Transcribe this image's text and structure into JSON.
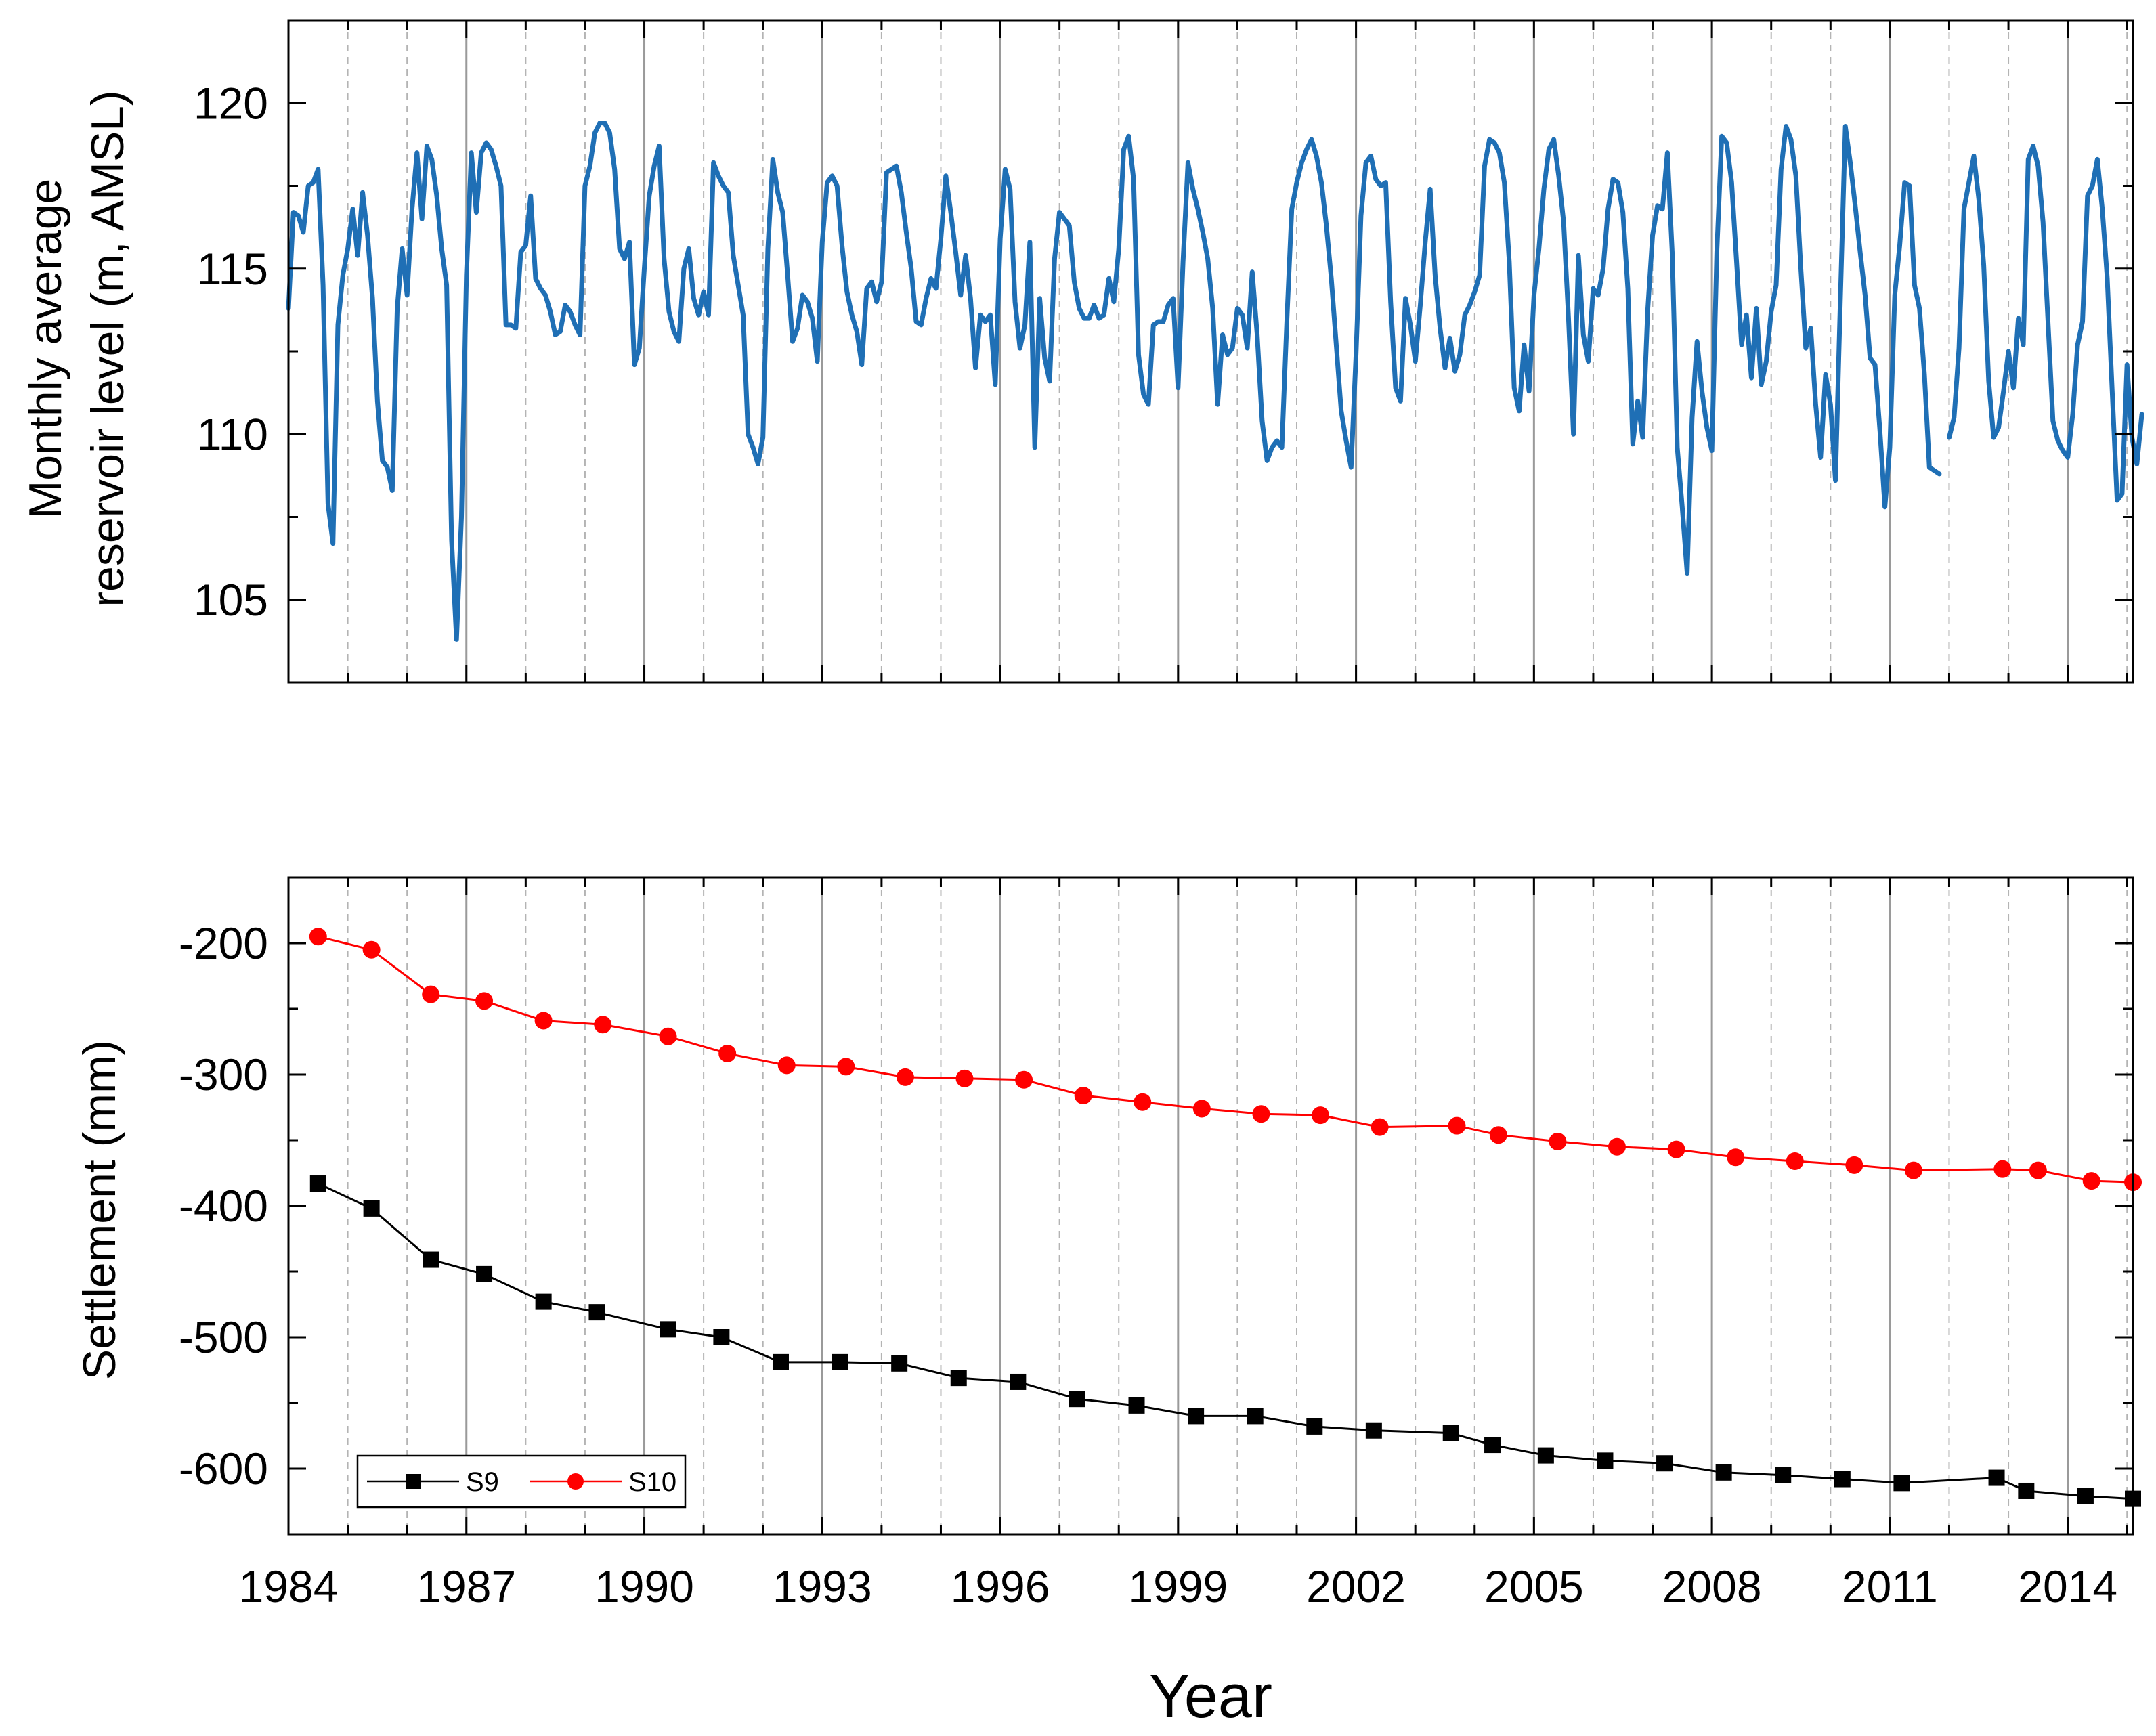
{
  "chart_data": [
    {
      "type": "line",
      "id": "reservoir",
      "ylabel_lines": [
        "Monthly average",
        "reservoir level (m, AMSL)"
      ],
      "xlim": [
        1984,
        2015.1
      ],
      "ylim": [
        102.5,
        122.5
      ],
      "y_ticks": [
        105,
        110,
        115,
        120
      ],
      "y_tick_labels": [
        "105",
        "110",
        "115",
        "120"
      ],
      "color": "#1f6fb5",
      "series": [
        {
          "name": "Reservoir level",
          "t0": 1984.0,
          "step": 0.0833333,
          "values": [
            113.8,
            116.7,
            116.6,
            116.1,
            117.5,
            117.6,
            118.0,
            114.5,
            107.9,
            106.7,
            113.3,
            114.8,
            115.6,
            116.8,
            115.4,
            117.3,
            116.0,
            114.1,
            111.0,
            109.2,
            109.0,
            108.3,
            113.8,
            115.6,
            114.2,
            116.8,
            118.5,
            116.5,
            118.7,
            118.3,
            117.2,
            115.6,
            114.5,
            106.8,
            103.8,
            107.5,
            114.8,
            118.5,
            116.7,
            118.5,
            118.8,
            118.6,
            118.1,
            117.5,
            113.3,
            113.3,
            113.2,
            115.5,
            115.7,
            117.2,
            114.7,
            114.4,
            114.2,
            113.7,
            113.0,
            113.1,
            113.9,
            113.7,
            113.3,
            113.0,
            117.5,
            118.1,
            119.1,
            119.4,
            119.4,
            119.1,
            118.0,
            115.6,
            115.3,
            115.8,
            112.1,
            112.6,
            115.0,
            117.2,
            118.1,
            118.7,
            115.3,
            113.7,
            113.1,
            112.8,
            115.0,
            115.6,
            114.1,
            113.6,
            114.3,
            113.6,
            118.2,
            117.8,
            117.5,
            117.3,
            115.4,
            114.5,
            113.6,
            110.0,
            109.6,
            109.1,
            109.9,
            115.6,
            118.3,
            117.3,
            116.7,
            114.8,
            112.8,
            113.2,
            114.2,
            114.0,
            113.5,
            112.2,
            115.8,
            117.6,
            117.8,
            117.5,
            115.7,
            114.3,
            113.6,
            113.1,
            112.1,
            114.4,
            114.6,
            114.0,
            114.6,
            117.9,
            118.0,
            118.1,
            117.3,
            116.1,
            115.0,
            113.4,
            113.3,
            114.1,
            114.7,
            114.4,
            115.9,
            117.8,
            116.7,
            115.5,
            114.2,
            115.4,
            114.1,
            112.0,
            113.6,
            113.4,
            113.6,
            111.5,
            115.9,
            118.0,
            117.4,
            114.0,
            112.6,
            113.3,
            115.8,
            109.6,
            114.1,
            112.3,
            111.6,
            115.3,
            116.7,
            116.5,
            116.3,
            114.6,
            113.8,
            113.5,
            113.5,
            113.9,
            113.5,
            113.6,
            114.7,
            114.0,
            115.6,
            118.6,
            119.0,
            117.7,
            112.4,
            111.2,
            110.9,
            113.3,
            113.4,
            113.4,
            113.9,
            114.1,
            111.4,
            115.2,
            118.2,
            117.4,
            116.8,
            116.1,
            115.3,
            113.8,
            110.9,
            113.0,
            112.4,
            112.6,
            113.8,
            113.6,
            112.6,
            114.9,
            113.0,
            110.4,
            109.2,
            109.6,
            109.8,
            109.6,
            113.4,
            116.8,
            117.6,
            118.2,
            118.6,
            118.9,
            118.4,
            117.6,
            116.3,
            114.7,
            112.7,
            110.7,
            109.8,
            109.0,
            112.4,
            116.6,
            118.2,
            118.4,
            117.7,
            117.5,
            117.6,
            114.0,
            111.4,
            111.0,
            114.1,
            113.3,
            112.2,
            113.9,
            115.8,
            117.4,
            114.8,
            113.2,
            112.0,
            112.9,
            111.9,
            112.4,
            113.6,
            113.9,
            114.3,
            114.8,
            118.1,
            118.9,
            118.8,
            118.5,
            117.6,
            115.2,
            111.4,
            110.7,
            112.7,
            111.3,
            114.2,
            115.6,
            117.4,
            118.6,
            118.9,
            117.8,
            116.4,
            113.5,
            110.0,
            115.4,
            113.0,
            112.2,
            114.4,
            114.2,
            115.0,
            116.8,
            117.7,
            117.6,
            116.7,
            114.4,
            109.7,
            111.0,
            109.9,
            113.7,
            116.0,
            116.9,
            116.8,
            118.5,
            115.4,
            109.6,
            107.8,
            105.8,
            110.5,
            112.8,
            111.3,
            110.2,
            109.5,
            115.5,
            119.0,
            118.8,
            117.6,
            115.2,
            112.7,
            113.6,
            111.7,
            113.8,
            111.5,
            112.2,
            113.7,
            114.5,
            118.0,
            119.3,
            118.9,
            117.8,
            115.0,
            112.6,
            113.2,
            110.9,
            109.3,
            111.8,
            110.9,
            108.6,
            114.1,
            119.3,
            118.2,
            116.9,
            115.5,
            114.2,
            112.3,
            112.1,
            110.1,
            107.8,
            109.6,
            114.2,
            115.7,
            117.6,
            117.5,
            114.5,
            113.8,
            111.8,
            109.0,
            108.9,
            108.8,
            null,
            109.9,
            110.5,
            112.6,
            116.8,
            117.6,
            118.4,
            117.1,
            115.1,
            111.6,
            109.9,
            110.2,
            111.3,
            112.5,
            111.4,
            113.5,
            112.7,
            118.3,
            118.7,
            118.1,
            116.4,
            113.4,
            110.4,
            109.8,
            109.5,
            109.3,
            110.6,
            112.7,
            113.4,
            117.2,
            117.5,
            118.3,
            116.8,
            114.7,
            111.3,
            108.0,
            108.2,
            112.1,
            109.9,
            109.1,
            110.6
          ]
        }
      ]
    },
    {
      "type": "line",
      "id": "settlement",
      "ylabel": "Settlement (mm)",
      "xlabel": "Year",
      "xlim": [
        1984,
        2015.1
      ],
      "ylim": [
        -650,
        -150
      ],
      "y_ticks": [
        -600,
        -500,
        -400,
        -300,
        -200
      ],
      "y_tick_labels": [
        "-600",
        "-500",
        "-400",
        "-300",
        "-200"
      ],
      "x_ticks": [
        1984,
        1987,
        1990,
        1993,
        1996,
        1999,
        2002,
        2005,
        2008,
        2011,
        2014
      ],
      "x_tick_labels": [
        "1984",
        "1987",
        "1990",
        "1993",
        "1996",
        "1999",
        "2002",
        "2005",
        "2008",
        "2011",
        "2014"
      ],
      "legend_position": "bottom-left",
      "series": [
        {
          "name": "S9",
          "color": "#000000",
          "marker": "square",
          "x": [
            1984.5,
            1985.4,
            1986.4,
            1987.3,
            1988.3,
            1989.2,
            1990.4,
            1991.3,
            1992.3,
            1993.3,
            1994.3,
            1995.3,
            1996.3,
            1997.3,
            1998.3,
            1999.3,
            2000.3,
            2001.3,
            2002.3,
            2003.6,
            2004.3,
            2005.2,
            2006.2,
            2007.2,
            2008.2,
            2009.2,
            2010.2,
            2011.2,
            2012.8,
            2013.3,
            2014.3,
            2015.1
          ],
          "y": [
            -383,
            -402,
            -441,
            -452,
            -473,
            -481,
            -494,
            -500,
            -519,
            -519,
            -520,
            -531,
            -534,
            -547,
            -552,
            -560,
            -560,
            -568,
            -571,
            -573,
            -582,
            -590,
            -594,
            -596,
            -603,
            -605,
            -608,
            -611,
            -607,
            -617,
            -621,
            -623
          ]
        },
        {
          "name": "S10",
          "color": "#ff0000",
          "marker": "circle",
          "x": [
            1984.5,
            1985.4,
            1986.4,
            1987.3,
            1988.3,
            1989.3,
            1990.4,
            1991.4,
            1992.4,
            1993.4,
            1994.4,
            1995.4,
            1996.4,
            1997.4,
            1998.4,
            1999.4,
            2000.4,
            2001.4,
            2002.4,
            2003.7,
            2004.4,
            2005.4,
            2006.4,
            2007.4,
            2008.4,
            2009.4,
            2010.4,
            2011.4,
            2012.9,
            2013.5,
            2014.4,
            2015.1
          ],
          "y": [
            -195,
            -205,
            -239,
            -244,
            -259,
            -262,
            -271,
            -284,
            -293,
            -294,
            -302,
            -303,
            -304,
            -316,
            -321,
            -326,
            -330,
            -331,
            -340,
            -339,
            -346,
            -351,
            -355,
            -357,
            -363,
            -366,
            -369,
            -373,
            -372,
            -373,
            -381,
            -382
          ]
        }
      ]
    }
  ]
}
